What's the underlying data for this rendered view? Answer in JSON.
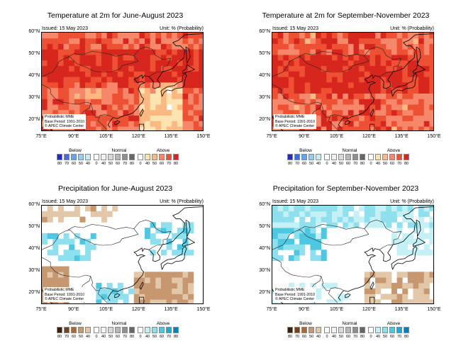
{
  "panels": [
    {
      "id": "temp-jja",
      "title": "Temperature at 2m for June-August 2023",
      "issued": "Issued: 15 May 2023",
      "unit": "Unit: % (Probability)",
      "variable": "temperature"
    },
    {
      "id": "temp-son",
      "title": "Temperature at 2m for September-November 2023",
      "issued": "Issued: 15 May 2023",
      "unit": "Unit: % (Probability)",
      "variable": "temperature"
    },
    {
      "id": "prec-jja",
      "title": "Precipitation for June-August 2023",
      "issued": "Issued: 15 May 2023",
      "unit": "Unit: % (Probability)",
      "variable": "precipitation"
    },
    {
      "id": "prec-son",
      "title": "Precipitation for September-November 2023",
      "issued": "Issued: 15 May 2023",
      "unit": "Unit: % (Probability)",
      "variable": "precipitation"
    }
  ],
  "lat_labels": [
    "60°N",
    "50°N",
    "40°N",
    "30°N",
    "20°N"
  ],
  "lon_labels": [
    "75°E",
    "90°E",
    "105°E",
    "120°E",
    "135°E",
    "150°E"
  ],
  "note_lines": [
    "Probabilistic MME",
    "Base Period: 1991-2010",
    "© APEC Climate Center"
  ],
  "legend": {
    "below": "Below",
    "normal": "Normal",
    "above": "Above",
    "numbers": [
      "80",
      "70",
      "60",
      "50",
      "40",
      "0",
      "40",
      "50",
      "60",
      "70",
      "80",
      "0",
      "40",
      "50",
      "60",
      "70",
      "80"
    ],
    "temp_colors": [
      "#1f2fb8",
      "#3d6fe0",
      "#62a6f0",
      "#92cdf4",
      "#c8e9f8",
      "#ffffff",
      "#f2f2f2",
      "#d9d9d9",
      "#b8b8b8",
      "#8f8f8f",
      "#666666",
      "#ffffff",
      "#fde3b0",
      "#fbb883",
      "#f6876a",
      "#ee5034",
      "#d7261d"
    ],
    "prec_colors": [
      "#3d1e0a",
      "#7a4218",
      "#a8683a",
      "#c79870",
      "#e2c7a8",
      "#ffffff",
      "#f2f2f2",
      "#d9d9d9",
      "#b8b8b8",
      "#8f8f8f",
      "#666666",
      "#ffffff",
      "#c4f0f6",
      "#8ee0ee",
      "#4dc8e0",
      "#1fa8d0",
      "#0a80b8"
    ]
  }
}
